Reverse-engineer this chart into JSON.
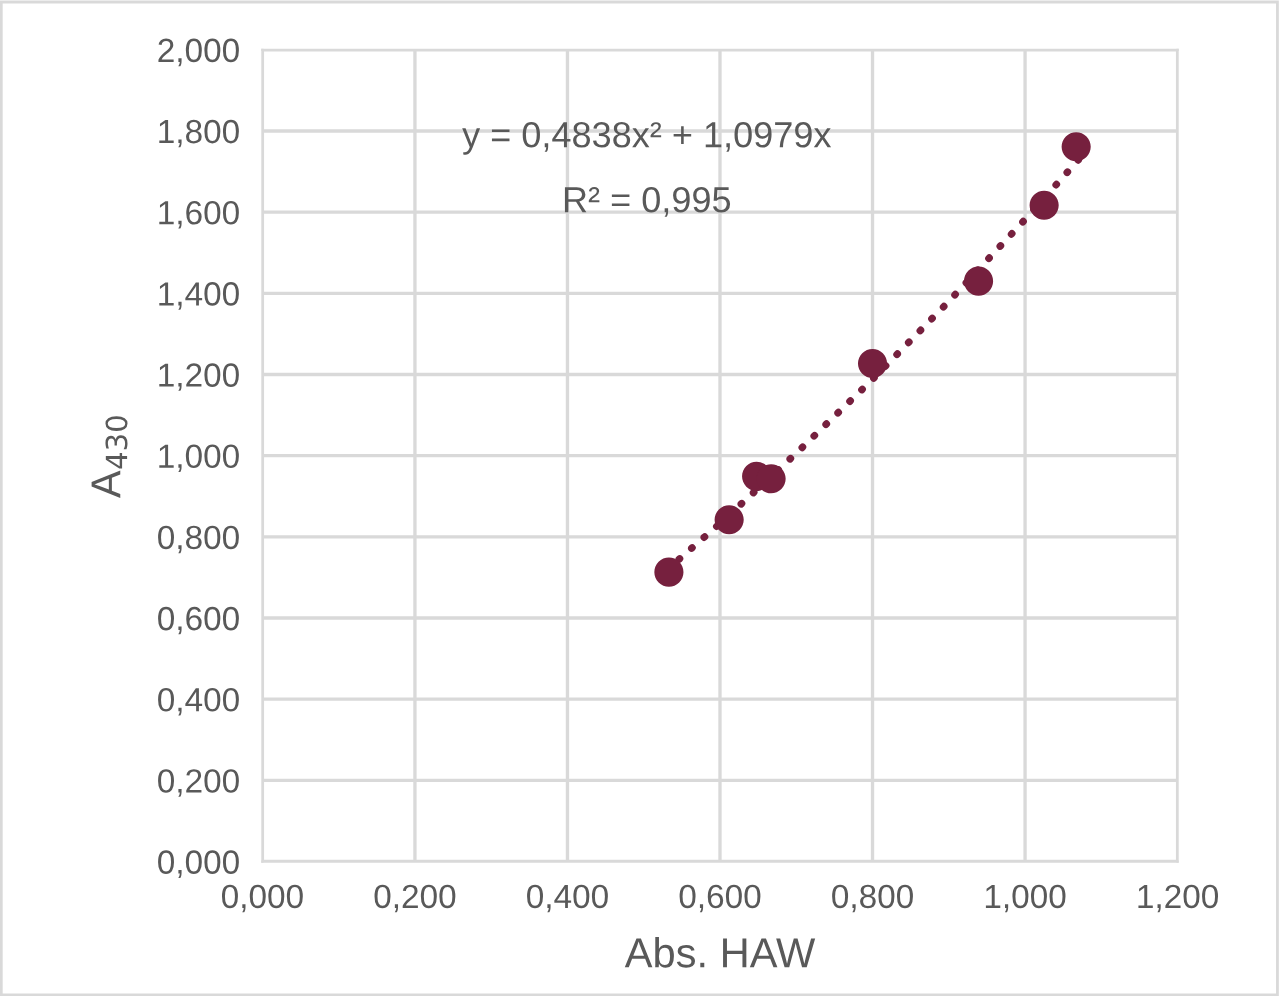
{
  "chart_data": {
    "type": "scatter",
    "xlabel": "Abs. HAW",
    "ylabel": "A$_{430}$",
    "annotations": [
      "y = 0,4838x² + 1,0979x",
      "R² = 0,995"
    ],
    "series": [
      {
        "color": "#76203e",
        "marker": "circle",
        "x": [
          0.533,
          0.612,
          0.648,
          0.667,
          0.8,
          0.939,
          1.025,
          1.067
        ],
        "values": [
          0.713,
          0.842,
          0.949,
          0.943,
          1.227,
          1.43,
          1.617,
          1.761
        ]
      },
      {
        "type": "line",
        "color": "#76203e",
        "line_style": "dotted",
        "x": [
          0.53,
          0.6,
          0.7,
          0.8,
          0.9,
          1.0,
          1.07
        ],
        "values": [
          0.718,
          0.833,
          1.006,
          1.188,
          1.38,
          1.582,
          1.729
        ]
      }
    ],
    "xlim": [
      0,
      1.2
    ],
    "xticks": [
      {
        "value": 0,
        "label": "0,000"
      },
      {
        "value": 0.2,
        "label": "0,200"
      },
      {
        "value": 0.4,
        "label": "0,400"
      },
      {
        "value": 0.6,
        "label": "0,600"
      },
      {
        "value": 0.8,
        "label": "0,800"
      },
      {
        "value": 1.0,
        "label": "1,000"
      },
      {
        "value": 1.2,
        "label": "1,200"
      }
    ],
    "ylim": [
      0,
      2
    ],
    "yticks": [
      {
        "value": 0,
        "label": "0,000"
      },
      {
        "value": 0.2,
        "label": "0,200"
      },
      {
        "value": 0.4,
        "label": "0,400"
      },
      {
        "value": 0.6,
        "label": "0,600"
      },
      {
        "value": 0.8,
        "label": "0,800"
      },
      {
        "value": 1.0,
        "label": "1,000"
      },
      {
        "value": 1.2,
        "label": "1,200"
      },
      {
        "value": 1.4,
        "label": "1,400"
      },
      {
        "value": 1.6,
        "label": "1,600"
      },
      {
        "value": 1.8,
        "label": "1,800"
      },
      {
        "value": 2.0,
        "label": "2,000"
      }
    ],
    "grid": true,
    "legend": false
  }
}
